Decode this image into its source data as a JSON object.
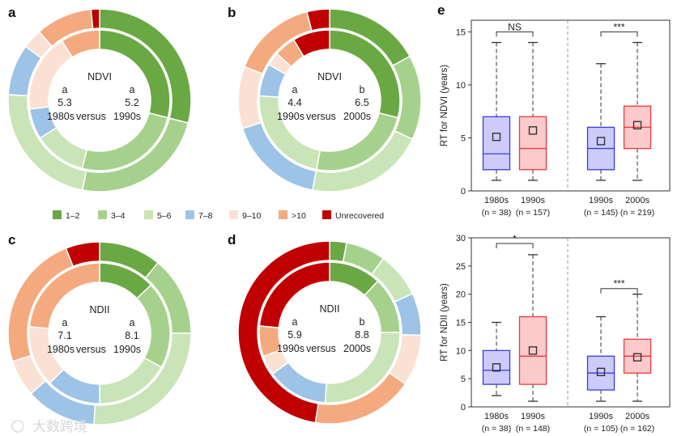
{
  "legend": {
    "title": "",
    "items": [
      {
        "label": "1–2",
        "color": "#6aa843"
      },
      {
        "label": "3–4",
        "color": "#a6d18c"
      },
      {
        "label": "5–6",
        "color": "#c9e4b7"
      },
      {
        "label": "7–8",
        "color": "#9dc3e6"
      },
      {
        "label": "9–10",
        "color": "#fbe1d4"
      },
      {
        "label": ">10",
        "color": "#f4aa7e"
      },
      {
        "label": "Unrecovered",
        "color": "#c00000"
      }
    ]
  },
  "watermark": "大数跨境",
  "chart_data": [
    {
      "type": "pie",
      "panel": "a",
      "index": "NDVI",
      "left": {
        "group": "a",
        "value": "5.3",
        "decade": "1980s"
      },
      "right": {
        "group": "a",
        "value": "5.2",
        "decade": "1990s"
      },
      "versus": "versus",
      "inner_ring_percent": [
        29,
        25,
        12,
        7,
        18,
        9,
        0
      ],
      "outer_ring_percent": [
        29,
        24,
        23,
        9,
        3.5,
        10,
        1.5
      ]
    },
    {
      "type": "pie",
      "panel": "b",
      "index": "NDVI",
      "left": {
        "group": "a",
        "value": "4.4",
        "decade": "1990s"
      },
      "right": {
        "group": "b",
        "value": "6.5",
        "decade": "2000s"
      },
      "versus": "versus",
      "inner_ring_percent": [
        29,
        24,
        23,
        7.5,
        3,
        5,
        8.5
      ],
      "outer_ring_percent": [
        17,
        15,
        21,
        17,
        11,
        15,
        4
      ]
    },
    {
      "type": "pie",
      "panel": "c",
      "index": "NDII",
      "left": {
        "group": "a",
        "value": "7.1",
        "decade": "1980s"
      },
      "right": {
        "group": "a",
        "value": "8.1",
        "decade": "1990s"
      },
      "versus": "versus",
      "inner_ring_percent": [
        13,
        20,
        17,
        12.5,
        14,
        23.5,
        0
      ],
      "outer_ring_percent": [
        11,
        14,
        26,
        12.5,
        6.5,
        24,
        6
      ]
    },
    {
      "type": "pie",
      "panel": "d",
      "index": "NDII",
      "left": {
        "group": "a",
        "value": "5.9",
        "decade": "1990s"
      },
      "right": {
        "group": "b",
        "value": "8.8",
        "decade": "2000s"
      },
      "versus": "versus",
      "inner_ring_percent": [
        12,
        13,
        26,
        14,
        4.5,
        7,
        23.5
      ],
      "outer_ring_percent": [
        3,
        7,
        8,
        7.5,
        9,
        18,
        47.5
      ]
    },
    {
      "type": "box",
      "panel": "e",
      "ylabel": "RT for NDVI (years)",
      "ylim": [
        0,
        16.1
      ],
      "yticks": [
        0,
        5,
        10,
        15
      ],
      "boxes": [
        {
          "label": "1980s",
          "n": "(n = 38)",
          "group": "blue",
          "whisker_low": 1,
          "q1": 2,
          "median": 3.5,
          "q3": 7,
          "whisker_high": 14,
          "mean": 5.1
        },
        {
          "label": "1990s",
          "n": "(n = 157)",
          "group": "red",
          "whisker_low": 1,
          "q1": 2,
          "median": 4,
          "q3": 7,
          "whisker_high": 14,
          "mean": 5.7
        },
        {
          "label": "1990s",
          "n": "(n = 145)",
          "group": "blue",
          "whisker_low": 1,
          "q1": 2,
          "median": 4,
          "q3": 6,
          "whisker_high": 12,
          "mean": 4.7
        },
        {
          "label": "2000s",
          "n": "(n = 219)",
          "group": "red",
          "whisker_low": 1,
          "q1": 4,
          "median": 6,
          "q3": 8,
          "whisker_high": 14,
          "mean": 6.2
        }
      ],
      "significance": [
        {
          "pair": [
            0,
            1
          ],
          "label": "NS",
          "y": 15
        },
        {
          "pair": [
            2,
            3
          ],
          "label": "***",
          "y": 15
        }
      ]
    },
    {
      "type": "box",
      "panel": "",
      "ylabel": "RT for NDII (years)",
      "ylim": [
        0,
        30
      ],
      "yticks": [
        0,
        5,
        10,
        15,
        20,
        25,
        30
      ],
      "boxes": [
        {
          "label": "1980s",
          "n": "(n = 38)",
          "group": "blue",
          "whisker_low": 2,
          "q1": 4,
          "median": 6.5,
          "q3": 10,
          "whisker_high": 15,
          "mean": 7
        },
        {
          "label": "1990s",
          "n": "(n = 148)",
          "group": "red",
          "whisker_low": 1,
          "q1": 4,
          "median": 9,
          "q3": 16,
          "whisker_high": 27,
          "mean": 10
        },
        {
          "label": "1990s",
          "n": "(n = 105)",
          "group": "blue",
          "whisker_low": 1,
          "q1": 3,
          "median": 6,
          "q3": 9,
          "whisker_high": 16,
          "mean": 6.2
        },
        {
          "label": "2000s",
          "n": "(n = 162)",
          "group": "red",
          "whisker_low": 1,
          "q1": 6,
          "median": 9,
          "q3": 12,
          "whisker_high": 20,
          "mean": 8.8
        }
      ],
      "significance": [
        {
          "pair": [
            0,
            1
          ],
          "label": "*",
          "y": 29
        },
        {
          "pair": [
            2,
            3
          ],
          "label": "***",
          "y": 21
        }
      ]
    }
  ]
}
